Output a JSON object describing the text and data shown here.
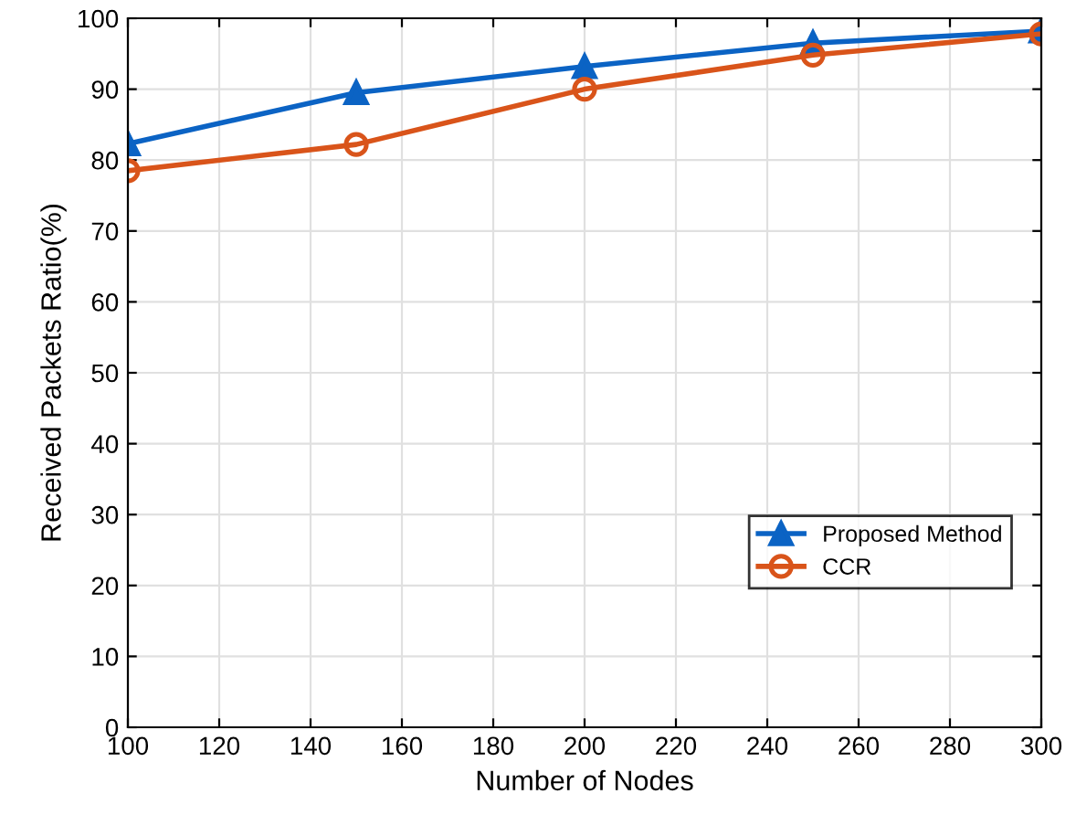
{
  "chart_data": {
    "type": "line",
    "xlabel": "Number of Nodes",
    "ylabel": "Received Packets Ratio(%)",
    "x": [
      100,
      150,
      200,
      250,
      300
    ],
    "series": [
      {
        "name": "Proposed Method",
        "color": "#0b63c4",
        "values": [
          82.3,
          89.5,
          93.2,
          96.5,
          98.2
        ],
        "marker": "triangle"
      },
      {
        "name": "CCR",
        "color": "#d9541a",
        "values": [
          78.5,
          82.2,
          90,
          94.8,
          97.8
        ],
        "marker": "circle"
      }
    ],
    "xlim": [
      100,
      300
    ],
    "xticks": [
      100,
      120,
      140,
      160,
      180,
      200,
      220,
      240,
      260,
      280,
      300
    ],
    "ylim": [
      0,
      100
    ],
    "yticks": [
      0,
      10,
      20,
      30,
      40,
      50,
      60,
      70,
      80,
      90,
      100
    ],
    "grid": true,
    "legend": "bottom right",
    "line_style": "solid"
  }
}
